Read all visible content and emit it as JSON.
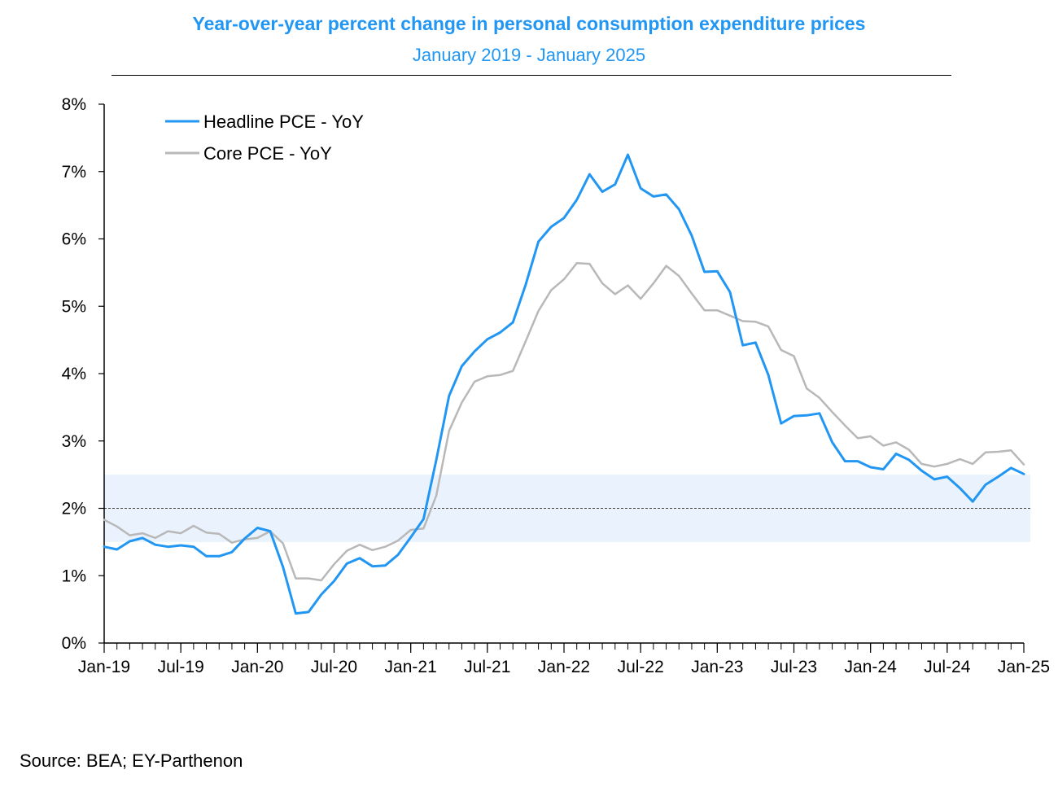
{
  "colors": {
    "headline": "#2196F3",
    "core": "#B8B8B8",
    "band": "#EAF3FD",
    "title": "#2196F3"
  },
  "chart_data": {
    "type": "line",
    "title": "Year-over-year percent change in personal consumption expenditure prices",
    "subtitle": "January 2019 - January 2025",
    "ylim": [
      0,
      8
    ],
    "y_ticks": [
      "0%",
      "1%",
      "2%",
      "3%",
      "4%",
      "5%",
      "6%",
      "7%",
      "8%"
    ],
    "x_tick_labels": [
      "Jan-19",
      "Jul-19",
      "Jan-20",
      "Jul-20",
      "Jan-21",
      "Jul-21",
      "Jan-22",
      "Jul-22",
      "Jan-23",
      "Jul-23",
      "Jan-24",
      "Jul-24",
      "Jan-25"
    ],
    "x_start": "Jan-19",
    "x_end": "Jan-25",
    "reference_line": 2,
    "target_band": [
      1.5,
      2.5
    ],
    "legend_position": "top-left",
    "series": [
      {
        "name": "Headline PCE - YoY",
        "values": [
          1.43,
          1.39,
          1.51,
          1.56,
          1.46,
          1.43,
          1.45,
          1.43,
          1.29,
          1.29,
          1.35,
          1.55,
          1.71,
          1.66,
          1.13,
          0.44,
          0.46,
          0.72,
          0.92,
          1.18,
          1.26,
          1.14,
          1.15,
          1.31,
          1.57,
          1.84,
          2.72,
          3.67,
          4.11,
          4.33,
          4.51,
          4.61,
          4.76,
          5.32,
          5.96,
          6.18,
          6.31,
          6.58,
          6.96,
          6.7,
          6.81,
          7.25,
          6.75,
          6.63,
          6.66,
          6.44,
          6.05,
          5.51,
          5.52,
          5.21,
          4.42,
          4.46,
          3.98,
          3.26,
          3.37,
          3.38,
          3.41,
          2.98,
          2.7,
          2.7,
          2.61,
          2.58,
          2.81,
          2.72,
          2.56,
          2.43,
          2.47,
          2.3,
          2.1,
          2.35,
          2.47,
          2.6,
          2.51
        ]
      },
      {
        "name": "Core PCE - YoY",
        "values": [
          1.83,
          1.73,
          1.6,
          1.63,
          1.56,
          1.66,
          1.63,
          1.74,
          1.64,
          1.62,
          1.49,
          1.54,
          1.56,
          1.66,
          1.48,
          0.96,
          0.96,
          0.93,
          1.17,
          1.37,
          1.46,
          1.38,
          1.43,
          1.52,
          1.68,
          1.7,
          2.19,
          3.15,
          3.57,
          3.88,
          3.96,
          3.98,
          4.04,
          4.48,
          4.93,
          5.24,
          5.4,
          5.64,
          5.63,
          5.34,
          5.18,
          5.31,
          5.11,
          5.34,
          5.6,
          5.45,
          5.19,
          4.94,
          4.94,
          4.86,
          4.78,
          4.77,
          4.7,
          4.35,
          4.26,
          3.78,
          3.64,
          3.43,
          3.23,
          3.04,
          3.07,
          2.93,
          2.98,
          2.87,
          2.66,
          2.62,
          2.66,
          2.73,
          2.66,
          2.83,
          2.84,
          2.86,
          2.65
        ]
      }
    ]
  },
  "source": "Source: BEA; EY-Parthenon"
}
